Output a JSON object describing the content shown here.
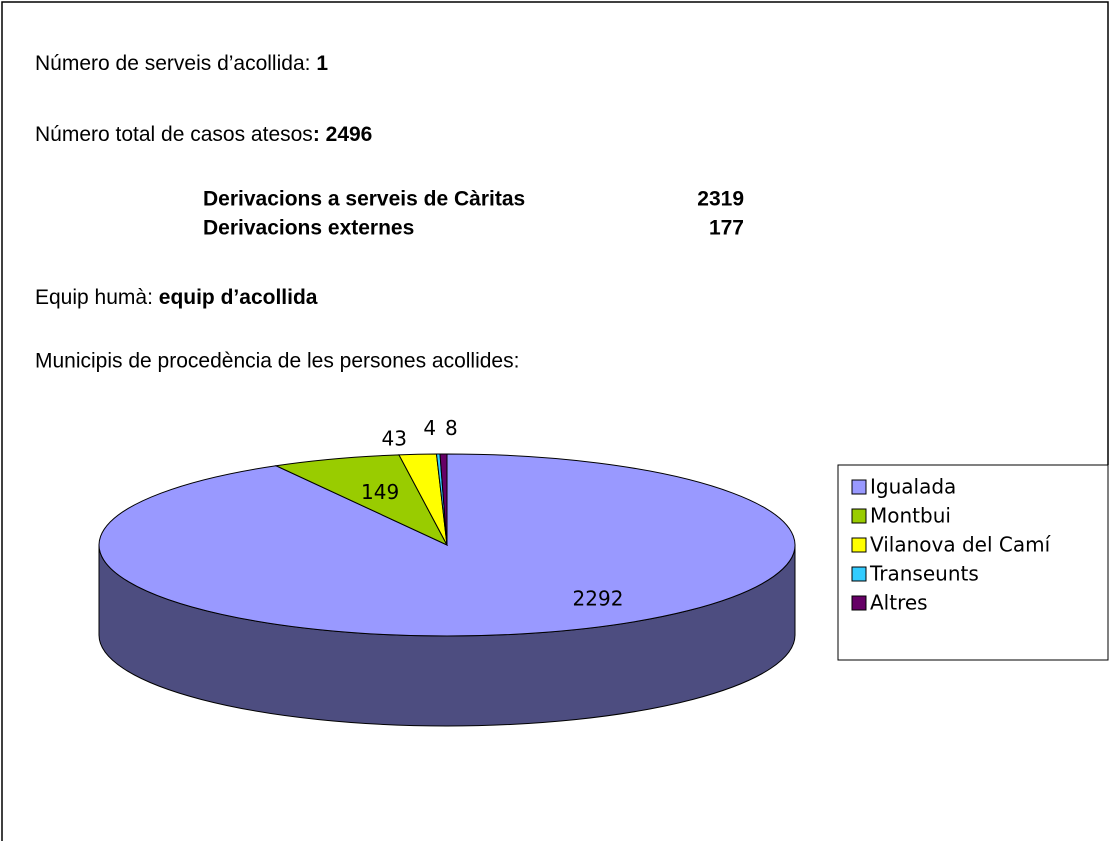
{
  "intro": {
    "services": {
      "label": "Número de serveis d’acollida:",
      "value": 1
    },
    "total": {
      "label": "Número total de casos atesos",
      "bold": ": 2496"
    },
    "referrals": [
      {
        "label": "Derivacions a serveis de Càritas",
        "value": 2319
      },
      {
        "label": "Derivacions externes",
        "value": 177
      }
    ],
    "team": {
      "label": "Equip humà:",
      "value": "equip d’acollida"
    },
    "origin": "Municipis de procedència de les persones acollides:"
  },
  "chart_data": {
    "type": "pie3d",
    "categories": [
      "Igualada",
      "Montbui",
      "Vilanova del Camí",
      "Transeunts",
      "Altres"
    ],
    "values": [
      2292,
      149,
      43,
      4,
      8
    ],
    "colors": [
      "#9999ff",
      "#99cc00",
      "#ffff00",
      "#33ccff",
      "#660066"
    ],
    "legend": "right"
  }
}
